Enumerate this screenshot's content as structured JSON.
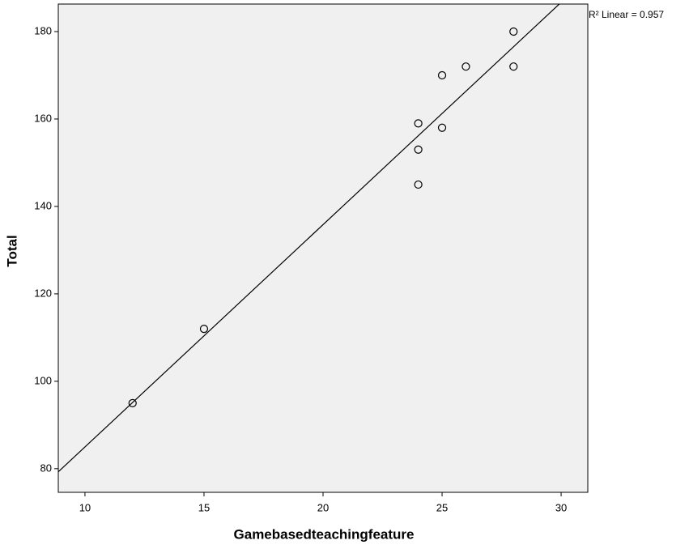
{
  "chart_data": {
    "type": "scatter",
    "x_label": "Gamebasedteachingfeature",
    "y_label": "Total",
    "annotation": "R² Linear = 0.957",
    "x": [
      12,
      15,
      24,
      24,
      24,
      25,
      25,
      26,
      28,
      28
    ],
    "values": [
      95,
      112,
      159,
      153,
      145,
      170,
      158,
      172,
      180,
      172
    ],
    "color": "#000000",
    "fit_line": true,
    "xlim": [
      8.88,
      31.12
    ],
    "xticks": [
      10,
      15,
      20,
      25,
      30
    ],
    "ylim": [
      74.6,
      186.3
    ],
    "yticks": [
      80,
      100,
      120,
      140,
      160,
      180
    ]
  }
}
